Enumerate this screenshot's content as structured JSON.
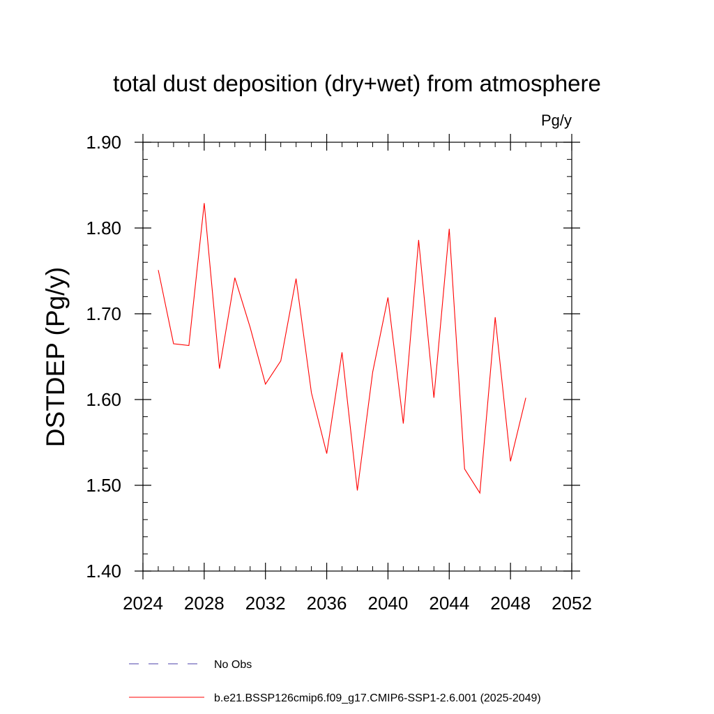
{
  "chart_data": {
    "type": "line",
    "title": "total dust deposition (dry+wet) from atmosphere",
    "units": "Pg/y",
    "ylabel": "DSTDEP  (Pg/y)",
    "xlabel": "",
    "xlim": [
      2024,
      2052
    ],
    "ylim": [
      1.4,
      1.9
    ],
    "x_ticks": [
      2024,
      2028,
      2032,
      2036,
      2040,
      2044,
      2048,
      2052
    ],
    "y_ticks": [
      1.4,
      1.5,
      1.6,
      1.7,
      1.8,
      1.9
    ],
    "y_tick_labels": [
      "1.40",
      "1.50",
      "1.60",
      "1.70",
      "1.80",
      "1.90"
    ],
    "grid": false,
    "legend_position": "bottom",
    "series": [
      {
        "name": "b.e21.BSSP126cmip6.f09_g17.CMIP6-SSP1-2.6.001 (2025-2049)",
        "color": "#ff0000",
        "style": "solid",
        "x": [
          2025,
          2026,
          2027,
          2028,
          2029,
          2030,
          2031,
          2032,
          2033,
          2034,
          2035,
          2036,
          2037,
          2038,
          2039,
          2040,
          2041,
          2042,
          2043,
          2044,
          2045,
          2046,
          2047,
          2048,
          2049
        ],
        "values": [
          1.751,
          1.665,
          1.663,
          1.829,
          1.636,
          1.742,
          1.684,
          1.618,
          1.645,
          1.741,
          1.608,
          1.537,
          1.655,
          1.494,
          1.632,
          1.719,
          1.572,
          1.786,
          1.602,
          1.799,
          1.519,
          1.491,
          1.696,
          1.528,
          1.602
        ]
      }
    ],
    "legend": [
      {
        "label": "No Obs",
        "color": "#4b3fa8",
        "style": "dashed"
      },
      {
        "label": "b.e21.BSSP126cmip6.f09_g17.CMIP6-SSP1-2.6.001 (2025-2049)",
        "color": "#ff0000",
        "style": "solid"
      }
    ]
  }
}
